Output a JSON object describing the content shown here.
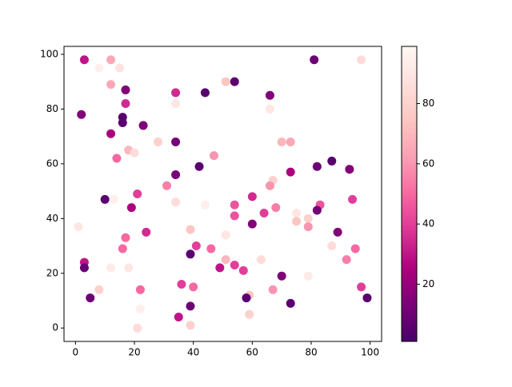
{
  "chart_data": {
    "type": "scatter",
    "x": [
      3,
      12,
      8,
      15,
      81,
      97,
      12,
      51,
      54,
      17,
      34,
      44,
      66,
      34,
      17,
      66,
      2,
      16,
      16,
      23,
      12,
      28,
      34,
      70,
      73,
      18,
      20,
      47,
      14,
      87,
      42,
      82,
      93,
      73,
      34,
      67,
      66,
      31,
      21,
      60,
      10,
      13,
      94,
      34,
      54,
      83,
      44,
      19,
      68,
      82,
      64,
      75,
      54,
      79,
      75,
      60,
      1,
      79,
      39,
      24,
      89,
      51,
      17,
      41,
      87,
      16,
      46,
      95,
      39,
      63,
      51,
      92,
      3,
      54,
      3,
      12,
      18,
      49,
      57,
      70,
      79,
      36,
      97,
      22,
      40,
      8,
      67,
      59,
      5,
      58,
      99,
      73,
      39,
      22,
      59,
      35,
      39,
      21
    ],
    "y": [
      98,
      98,
      95,
      95,
      98,
      98,
      89,
      90,
      90,
      87,
      86,
      86,
      85,
      82,
      82,
      80,
      78,
      77,
      75,
      74,
      71,
      68,
      68,
      68,
      68,
      65,
      64,
      63,
      62,
      61,
      59,
      59,
      58,
      57,
      56,
      54,
      52,
      52,
      49,
      48,
      47,
      47,
      47,
      46,
      45,
      45,
      45,
      44,
      44,
      43,
      42,
      42,
      41,
      40,
      39,
      38,
      37,
      37,
      36,
      35,
      35,
      34,
      33,
      30,
      30,
      29,
      29,
      29,
      27,
      25,
      25,
      25,
      24,
      23,
      22,
      22,
      22,
      22,
      21,
      19,
      19,
      16,
      15,
      14,
      15,
      14,
      14,
      12,
      11,
      11,
      11,
      9,
      8,
      7,
      5,
      4,
      1,
      0
    ],
    "c": [
      30,
      65,
      95,
      88,
      10,
      85,
      65,
      75,
      5,
      15,
      35,
      5,
      15,
      90,
      35,
      90,
      15,
      5,
      5,
      15,
      25,
      80,
      12,
      70,
      65,
      70,
      85,
      60,
      50,
      5,
      5,
      10,
      15,
      25,
      12,
      80,
      60,
      55,
      40,
      35,
      5,
      95,
      40,
      85,
      45,
      45,
      95,
      25,
      55,
      12,
      40,
      90,
      45,
      80,
      75,
      15,
      90,
      60,
      75,
      35,
      15,
      90,
      50,
      40,
      85,
      50,
      50,
      50,
      5,
      85,
      70,
      55,
      30,
      40,
      8,
      92,
      90,
      30,
      40,
      15,
      92,
      40,
      40,
      50,
      50,
      80,
      60,
      75,
      10,
      5,
      5,
      5,
      10,
      95,
      80,
      30,
      80,
      85
    ],
    "xlim": [
      -3.9,
      103.9
    ],
    "ylim": [
      -4.9,
      102.9
    ],
    "xticks": [
      0,
      20,
      40,
      60,
      80,
      100
    ],
    "yticks": [
      0,
      20,
      40,
      60,
      80,
      100
    ],
    "clim": [
      1,
      99
    ],
    "cticks": [
      20,
      40,
      60,
      80
    ],
    "cmap_colors": [
      "#49006a",
      "#7a0177",
      "#ae017e",
      "#dd3497",
      "#f768a1",
      "#fa9fb5",
      "#fcc5c0",
      "#fde0dd",
      "#fff7f3"
    ]
  }
}
